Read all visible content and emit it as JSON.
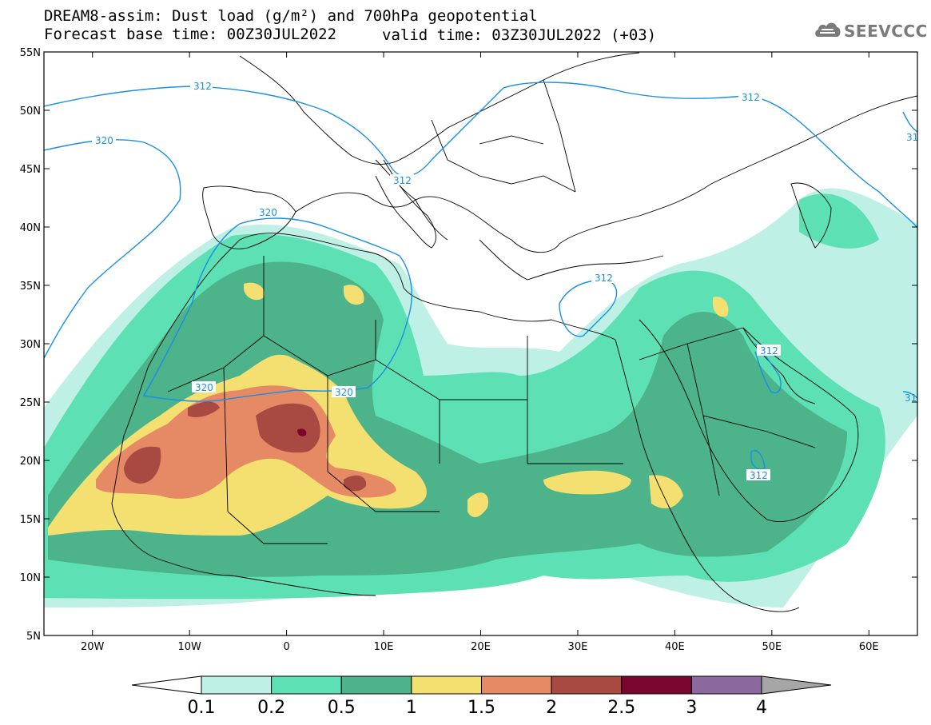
{
  "title_line1": "DREAM8-assim: Dust load (g/m²) and 700hPa geopotential",
  "title_line2": "Forecast base time: 00Z30JUL2022",
  "valid_time": "valid time: 03Z30JUL2022 (+03)",
  "logo_text": "SEEVCCC",
  "logo_icon": "cloud-icon",
  "map": {
    "lon_range": [
      -25,
      65
    ],
    "lat_range": [
      5,
      55
    ],
    "lat_ticks": [
      "55N",
      "50N",
      "45N",
      "40N",
      "35N",
      "30N",
      "25N",
      "20N",
      "15N",
      "10N",
      "5N"
    ],
    "lon_ticks": [
      "20W",
      "10W",
      "0",
      "10E",
      "20E",
      "30E",
      "40E",
      "50E",
      "60E"
    ],
    "contour_labels": [
      "312",
      "320",
      "320",
      "312",
      "312",
      "320",
      "320",
      "312",
      "312",
      "312",
      "31",
      "31"
    ],
    "contour_color": "#1a8fe3"
  },
  "colorbar": {
    "labels": [
      "0.1",
      "0.2",
      "0.5",
      "1",
      "1.5",
      "2",
      "2.5",
      "3",
      "4"
    ],
    "colors": [
      "#ffffff",
      "#bff0e6",
      "#5de0b4",
      "#4db38a",
      "#f4e070",
      "#e68a66",
      "#a84a42",
      "#7a0630",
      "#8a6a9e",
      "#a6a6a6"
    ]
  }
}
